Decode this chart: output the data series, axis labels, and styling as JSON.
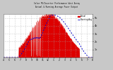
{
  "title": "Solar PV/Inverter Performance West Array\nActual & Running Average Power Output",
  "bg_color": "#c8c8c8",
  "plot_bg_color": "#ffffff",
  "actual_color": "#dd0000",
  "avg_color": "#0000cc",
  "grid_color": "#aaaaaa",
  "n_points": 288,
  "ylim_max": 5.5,
  "ytick_values": [
    1,
    2,
    3,
    4,
    5
  ],
  "ytick_labels": [
    "1k",
    "2k",
    "3k",
    "4k",
    "5k"
  ],
  "xtick_labels": [
    "4",
    "5",
    "6",
    "7",
    "8",
    "9",
    "10",
    "11",
    "12",
    "1",
    "2",
    "3",
    "4",
    "5",
    "6",
    "7",
    "8"
  ],
  "legend_actual": "Actual",
  "legend_avg": "Running Avg"
}
